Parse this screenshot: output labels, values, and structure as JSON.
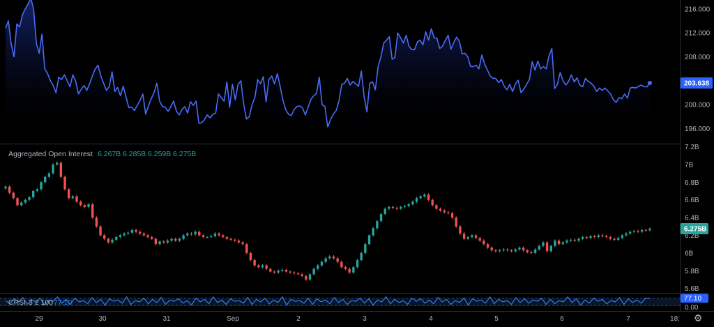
{
  "colors": {
    "background": "#000000",
    "price_line": "#4a6cf7",
    "price_fill_top": "#1b2f8f",
    "up_candle": "#26a69a",
    "down_candle": "#ef5350",
    "crsi_line": "#2f80ed",
    "crsi_band": "#1c3a6e",
    "divider": "#2a2e39",
    "axis_text": "#b2b5be",
    "price_badge": "#2962ff",
    "oi_badge": "#26a69a",
    "crsi_badge": "#2962ff"
  },
  "icons": {
    "settings": "gear-icon"
  },
  "chart_data": [
    {
      "type": "area",
      "name": "price",
      "y_ticks": [
        "216.000",
        "212.000",
        "208.000",
        "204.000",
        "200.000",
        "196.000"
      ],
      "ylim": [
        193.5,
        217.5
      ],
      "last_value_label": "203.638",
      "values": [
        212.8,
        214.0,
        210.2,
        208.0,
        213.5,
        213.0,
        215.0,
        216.0,
        216.8,
        217.8,
        216.0,
        210.2,
        208.6,
        211.8,
        206.0,
        205.2,
        204.0,
        203.2,
        202.0,
        204.6,
        204.2,
        205.0,
        204.0,
        203.0,
        205.0,
        204.0,
        201.8,
        202.6,
        203.2,
        202.4,
        203.5,
        204.8,
        206.0,
        206.6,
        204.8,
        203.6,
        202.4,
        203.0,
        205.5,
        202.2,
        202.9,
        201.5,
        203.1,
        201.3,
        199.5,
        199.6,
        199.0,
        199.9,
        200.7,
        201.8,
        198.4,
        199.8,
        201.0,
        202.0,
        203.6,
        200.6,
        199.7,
        199.6,
        198.9,
        199.7,
        200.6,
        198.9,
        198.3,
        199.2,
        199.7,
        198.6,
        200.5,
        199.9,
        200.6,
        196.9,
        197.0,
        197.5,
        198.3,
        197.8,
        198.4,
        198.6,
        201.8,
        201.2,
        200.6,
        203.8,
        199.6,
        203.4,
        200.8,
        203.4,
        204.0,
        200.1,
        197.6,
        198.0,
        200.0,
        201.2,
        204.2,
        203.5,
        204.7,
        200.5,
        204.2,
        204.8,
        203.5,
        205.2,
        203.1,
        200.8,
        199.2,
        198.4,
        198.2,
        199.2,
        199.7,
        199.8,
        199.5,
        198.3,
        199.6,
        200.9,
        201.5,
        201.9,
        204.6,
        200.0,
        199.7,
        196.3,
        197.5,
        198.4,
        199.0,
        200.6,
        203.4,
        203.6,
        204.4,
        203.3,
        203.9,
        203.5,
        203.1,
        205.6,
        201.4,
        198.8,
        203.6,
        203.8,
        202.5,
        206.4,
        208.0,
        210.3,
        210.8,
        211.4,
        207.6,
        207.9,
        212.0,
        211.2,
        210.3,
        211.6,
        209.8,
        209.2,
        209.2,
        210.5,
        210.8,
        210.0,
        212.2,
        210.8,
        212.7,
        211.2,
        211.1,
        209.4,
        209.8,
        210.8,
        211.6,
        209.3,
        210.4,
        211.3,
        210.6,
        208.5,
        208.6,
        208.0,
        206.4,
        206.4,
        206.6,
        206.0,
        208.3,
        206.8,
        205.8,
        204.8,
        204.4,
        204.4,
        203.7,
        204.2,
        203.1,
        202.5,
        203.4,
        202.2,
        203.5,
        204.1,
        202.0,
        202.6,
        203.4,
        204.2,
        207.2,
        205.8,
        207.3,
        206.0,
        206.4,
        206.0,
        208.2,
        209.4,
        202.7,
        203.4,
        205.4,
        204.0,
        203.3,
        203.9,
        205.0,
        203.8,
        204.5,
        203.3,
        203.0,
        204.4,
        203.9,
        203.6,
        203.1,
        202.2,
        202.8,
        202.4,
        202.8,
        202.3,
        201.8,
        200.8,
        200.4,
        201.2,
        201.0,
        201.8,
        201.1,
        202.8,
        202.9,
        202.8,
        203.1,
        203.3,
        203.0,
        203.0,
        203.638
      ]
    },
    {
      "type": "candlestick",
      "name": "Aggregated Open Interest",
      "legend_values": [
        "6.267B",
        "6.285B",
        "6.259B",
        "6.275B"
      ],
      "y_ticks": [
        "7.2B",
        "7B",
        "6.8B",
        "6.6B",
        "6.4B",
        "6.2B",
        "6B",
        "5.8B",
        "5.6B"
      ],
      "ylim": [
        5.55,
        7.22
      ],
      "last_value_label": "6.275B",
      "closes_B": [
        6.75,
        6.68,
        6.62,
        6.54,
        6.57,
        6.6,
        6.63,
        6.7,
        6.72,
        6.8,
        6.86,
        6.9,
        7.0,
        7.02,
        6.86,
        6.72,
        6.62,
        6.64,
        6.58,
        6.54,
        6.52,
        6.55,
        6.4,
        6.3,
        6.2,
        6.16,
        6.12,
        6.15,
        6.18,
        6.2,
        6.22,
        6.23,
        6.26,
        6.24,
        6.22,
        6.2,
        6.18,
        6.16,
        6.1,
        6.13,
        6.12,
        6.14,
        6.16,
        6.14,
        6.16,
        6.2,
        6.22,
        6.21,
        6.24,
        6.2,
        6.18,
        6.18,
        6.19,
        6.22,
        6.2,
        6.18,
        6.16,
        6.15,
        6.14,
        6.12,
        6.1,
        6.0,
        5.92,
        5.86,
        5.84,
        5.86,
        5.82,
        5.79,
        5.78,
        5.8,
        5.81,
        5.79,
        5.78,
        5.77,
        5.76,
        5.74,
        5.7,
        5.76,
        5.82,
        5.86,
        5.9,
        5.94,
        5.96,
        5.94,
        5.9,
        5.84,
        5.82,
        5.78,
        5.84,
        5.92,
        6.0,
        6.1,
        6.2,
        6.28,
        6.36,
        6.44,
        6.5,
        6.52,
        6.51,
        6.5,
        6.52,
        6.53,
        6.55,
        6.58,
        6.62,
        6.64,
        6.66,
        6.6,
        6.54,
        6.5,
        6.48,
        6.46,
        6.45,
        6.4,
        6.3,
        6.22,
        6.16,
        6.18,
        6.2,
        6.17,
        6.14,
        6.1,
        6.06,
        6.03,
        6.02,
        6.03,
        6.04,
        6.03,
        6.02,
        6.04,
        6.06,
        6.03,
        6.01,
        6.0,
        6.04,
        6.08,
        6.12,
        6.02,
        6.08,
        6.14,
        6.1,
        6.12,
        6.14,
        6.15,
        6.14,
        6.16,
        6.18,
        6.17,
        6.19,
        6.18,
        6.2,
        6.19,
        6.18,
        6.16,
        6.15,
        6.17,
        6.2,
        6.22,
        6.24,
        6.25,
        6.24,
        6.26,
        6.257,
        6.275
      ]
    },
    {
      "type": "line",
      "name": "CRSI",
      "legend_label": "CRSI",
      "legend_params": "3 2 100",
      "legend_value": "77.10",
      "y_ticks": [
        "0.00"
      ],
      "ylim": [
        0,
        100
      ],
      "band": [
        20,
        80
      ],
      "last_value_label": "77.10",
      "values": [
        60,
        35,
        75,
        50,
        85,
        30,
        70,
        45,
        80,
        25,
        65,
        55,
        90,
        40,
        70,
        30,
        80,
        50,
        60,
        35,
        85,
        45,
        70,
        25,
        75,
        55,
        65,
        40,
        90,
        30,
        60,
        50,
        80,
        35,
        70,
        45,
        85,
        30,
        65,
        55,
        75,
        40,
        60,
        25,
        80,
        50,
        70,
        35,
        90,
        45,
        65,
        30,
        75,
        55,
        60,
        40,
        85,
        30,
        70,
        50,
        80,
        35,
        65,
        45,
        90,
        25,
        70,
        55,
        60,
        40,
        80,
        30,
        75,
        50,
        65,
        35,
        85,
        45,
        70,
        30,
        60,
        55,
        80,
        40,
        75,
        25,
        65,
        50,
        90,
        35,
        70,
        45,
        60,
        30,
        80,
        55,
        75,
        40,
        65,
        35,
        85,
        50,
        70,
        30,
        60,
        45,
        80,
        25,
        75,
        55,
        65,
        40,
        90,
        35,
        70,
        50,
        60,
        30,
        85,
        45,
        75,
        40,
        65,
        55,
        80,
        30,
        70,
        35,
        60,
        50,
        90,
        45,
        75,
        25,
        65,
        40,
        80,
        55,
        70,
        35,
        60,
        50,
        85,
        30,
        75,
        45,
        65,
        40,
        80,
        77.1
      ],
      "x_ticks": [
        "29",
        "30",
        "31",
        "Sep",
        "2",
        "3",
        "4",
        "5",
        "6",
        "7",
        "18:"
      ]
    }
  ]
}
